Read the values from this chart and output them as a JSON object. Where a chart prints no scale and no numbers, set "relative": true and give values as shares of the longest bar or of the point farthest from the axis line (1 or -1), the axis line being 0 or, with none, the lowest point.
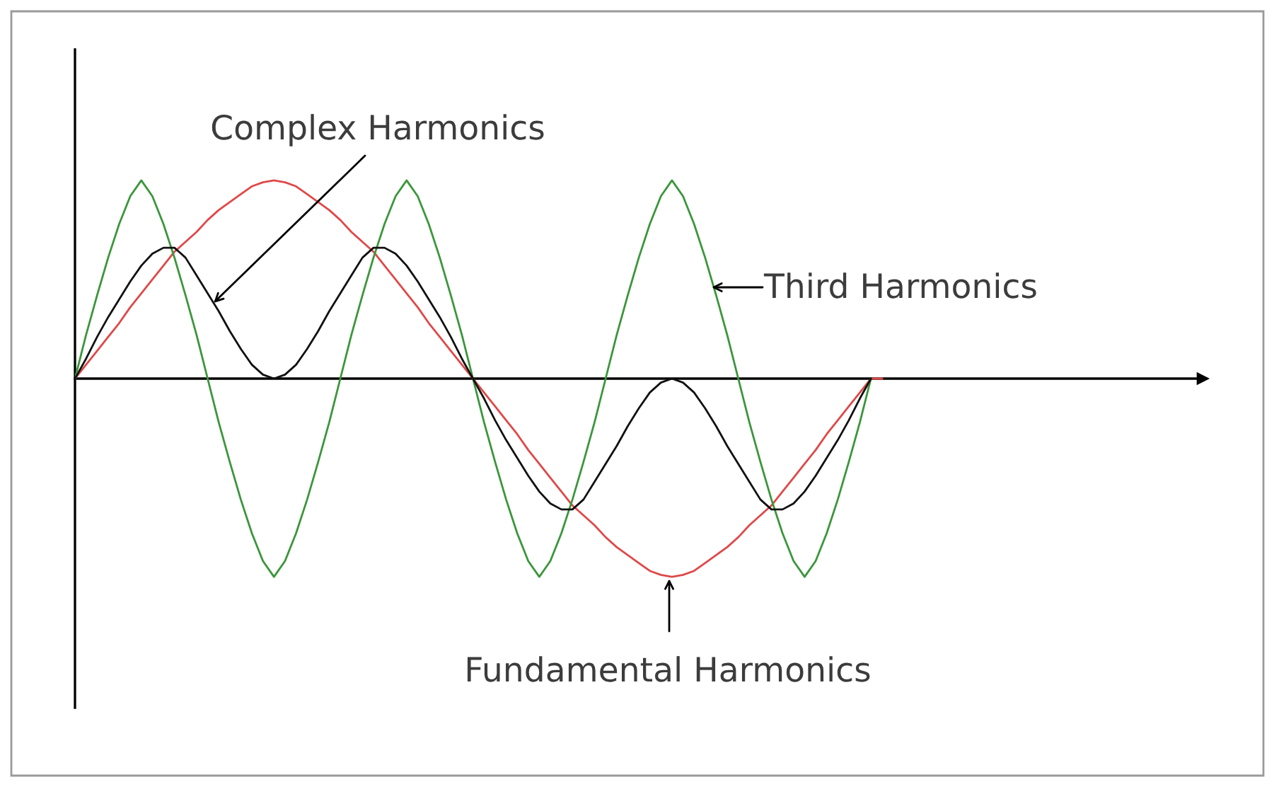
{
  "chart_data": {
    "type": "line",
    "relative": true,
    "grid": false,
    "line_style": "solid",
    "categories": [
      null,
      null,
      null,
      null,
      null,
      null,
      null,
      null,
      null,
      null,
      null,
      null,
      null,
      null,
      null,
      null,
      null,
      null,
      null,
      null,
      null,
      null,
      null,
      null,
      null,
      null,
      null,
      null,
      null,
      null,
      null,
      null,
      null,
      null,
      null,
      null,
      null,
      null,
      null,
      null,
      null,
      null,
      null,
      null,
      null,
      null,
      null,
      null,
      null,
      null,
      null,
      null,
      null,
      null,
      null,
      null,
      null,
      null,
      null,
      null,
      null,
      null,
      null,
      null,
      null,
      null,
      null,
      null,
      null,
      null,
      null,
      null,
      null,
      null,
      null,
      null,
      null,
      null,
      null,
      null,
      null,
      null,
      null,
      null,
      null,
      null,
      null,
      null,
      null,
      null,
      null,
      null,
      null,
      null,
      null,
      null,
      null,
      null,
      null,
      null,
      null,
      null,
      null
    ],
    "series": [
      {
        "name": "Fundamental Harmonics",
        "color": "#e04848",
        "values": [
          0,
          0.07,
          0.14,
          0.21,
          0.28,
          0.36,
          0.43,
          0.5,
          0.57,
          0.64,
          0.69,
          0.74,
          0.8,
          0.85,
          0.89,
          0.93,
          0.97,
          0.99,
          1.0,
          0.99,
          0.97,
          0.93,
          0.89,
          0.85,
          0.8,
          0.74,
          0.69,
          0.64,
          0.57,
          0.5,
          0.43,
          0.36,
          0.28,
          0.21,
          0.14,
          0.07,
          0,
          -0.07,
          -0.14,
          -0.21,
          -0.28,
          -0.36,
          -0.43,
          -0.5,
          -0.57,
          -0.64,
          -0.69,
          -0.74,
          -0.8,
          -0.85,
          -0.89,
          -0.93,
          -0.97,
          -0.99,
          -1.0,
          -0.99,
          -0.97,
          -0.93,
          -0.89,
          -0.85,
          -0.8,
          -0.74,
          -0.69,
          -0.64,
          -0.57,
          -0.5,
          -0.43,
          -0.36,
          -0.28,
          -0.21,
          -0.14,
          -0.07,
          0,
          0,
          null,
          null,
          null,
          null,
          null,
          null,
          null,
          null,
          null,
          null,
          null,
          null,
          null,
          null,
          null,
          null,
          null,
          null,
          null,
          null,
          null,
          null,
          null,
          null,
          null,
          null,
          null,
          null,
          null
        ]
      },
      {
        "name": "Third Harmonics",
        "color": "#3a963a",
        "values": [
          0,
          0.22,
          0.42,
          0.61,
          0.78,
          0.92,
          1,
          0.92,
          0.78,
          0.61,
          0.42,
          0.22,
          0,
          -0.22,
          -0.42,
          -0.61,
          -0.78,
          -0.92,
          -1,
          -0.92,
          -0.78,
          -0.61,
          -0.42,
          -0.22,
          0,
          0.22,
          0.42,
          0.61,
          0.78,
          0.92,
          1,
          0.92,
          0.78,
          0.61,
          0.42,
          0.22,
          0,
          -0.22,
          -0.42,
          -0.61,
          -0.78,
          -0.92,
          -1,
          -0.92,
          -0.78,
          -0.61,
          -0.42,
          -0.22,
          0,
          0.22,
          0.42,
          0.61,
          0.78,
          0.92,
          1,
          0.92,
          0.78,
          0.61,
          0.42,
          0.22,
          0,
          -0.22,
          -0.42,
          -0.61,
          -0.78,
          -0.92,
          -1,
          -0.92,
          -0.78,
          -0.61,
          -0.42,
          -0.22,
          0,
          null,
          null,
          null,
          null,
          null,
          null,
          null,
          null,
          null,
          null,
          null,
          null,
          null,
          null,
          null,
          null,
          null,
          null,
          null,
          null,
          null,
          null,
          null,
          null,
          null,
          null,
          null,
          null,
          null,
          null
        ]
      },
      {
        "name": "Complex Harmonics",
        "color": "#111111",
        "values": [
          0,
          0.1,
          0.21,
          0.31,
          0.4,
          0.49,
          0.57,
          0.63,
          0.66,
          0.66,
          0.61,
          0.52,
          0.43,
          0.34,
          0.24,
          0.15,
          0.07,
          0.02,
          0,
          0.02,
          0.07,
          0.15,
          0.24,
          0.34,
          0.43,
          0.52,
          0.61,
          0.66,
          0.66,
          0.63,
          0.57,
          0.49,
          0.4,
          0.31,
          0.21,
          0.1,
          0,
          -0.1,
          -0.21,
          -0.31,
          -0.4,
          -0.49,
          -0.57,
          -0.63,
          -0.66,
          -0.66,
          -0.61,
          -0.52,
          -0.43,
          -0.34,
          -0.24,
          -0.15,
          -0.07,
          -0.02,
          0,
          -0.02,
          -0.07,
          -0.15,
          -0.24,
          -0.34,
          -0.43,
          -0.52,
          -0.61,
          -0.66,
          -0.66,
          -0.63,
          -0.57,
          -0.49,
          -0.4,
          -0.31,
          -0.21,
          -0.1,
          0,
          null,
          null,
          null,
          null,
          null,
          null,
          null,
          null,
          null,
          null,
          null,
          null,
          null,
          null,
          null,
          null,
          null,
          null,
          null,
          null,
          null,
          null,
          null,
          null,
          null,
          null,
          null,
          null,
          null,
          null
        ]
      }
    ]
  }
}
